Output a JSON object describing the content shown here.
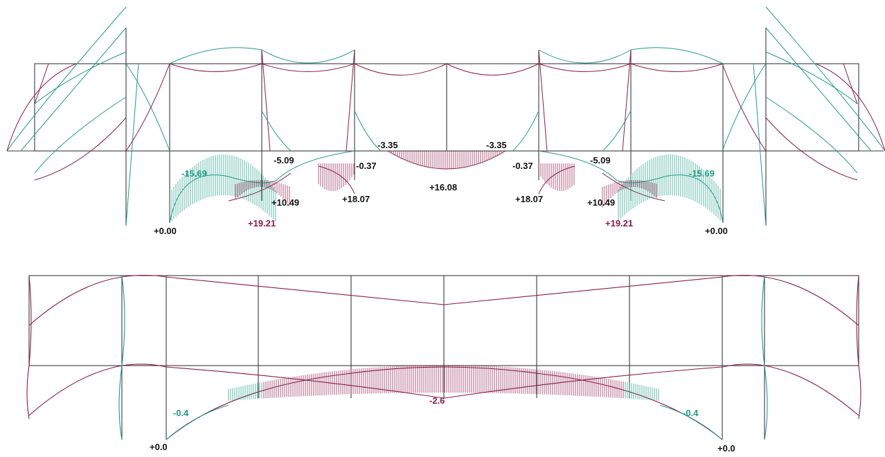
{
  "colors": {
    "positive": "#8b1a45",
    "negative": "#1f9c86",
    "structure": "#3a3a3a",
    "label_black": "#111111"
  },
  "top_diagram": {
    "labels": {
      "l_m15_69_left": "-15.69",
      "l_m5_09_left": "-5.09",
      "l_m3_35_left": "-3.35",
      "l_m0_37_left": "-0.37",
      "l_p0_00_left": "+0.00",
      "l_p10_49_left": "+10.49",
      "l_p19_21_left": "+19.21",
      "l_p18_07_left": "+18.07",
      "l_p16_08": "+16.08",
      "l_m3_35_right": "-3.35",
      "l_m0_37_right": "-0.37",
      "l_m5_09_right": "-5.09",
      "l_p18_07_right": "+18.07",
      "l_p10_49_right": "+10.49",
      "l_m15_69_right": "-15.69",
      "l_p19_21_right": "+19.21",
      "l_p0_00_right": "+0.00"
    }
  },
  "bottom_diagram": {
    "labels": {
      "l_m0_4_left": "-0.4",
      "l_m2_6": "-2.6",
      "l_m0_4_right": "-0.4",
      "l_p0_0_left": "+0.0",
      "l_p0_0_right": "+0.0"
    }
  }
}
